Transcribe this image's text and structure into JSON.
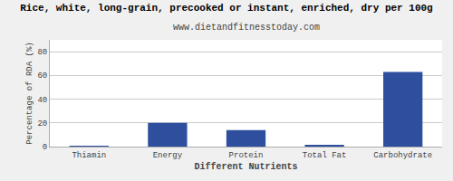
{
  "chart_data": {
    "type": "bar",
    "title": "Rice, white, long-grain, precooked or instant, enriched, dry per 100g",
    "subtitle": "www.dietandfitnesstoday.com",
    "categories": [
      "Thiamin",
      "Energy",
      "Protein",
      "Total Fat",
      "Carbohydrate"
    ],
    "values": [
      0.3,
      20.0,
      14.0,
      1.0,
      63.0
    ],
    "color": "#2d4f9e",
    "xlabel": "Different Nutrients",
    "ylabel": "Percentage of RDA (%)",
    "ylim": [
      0,
      90
    ],
    "yticks": [
      0,
      20,
      40,
      60,
      80
    ],
    "grid": true
  }
}
